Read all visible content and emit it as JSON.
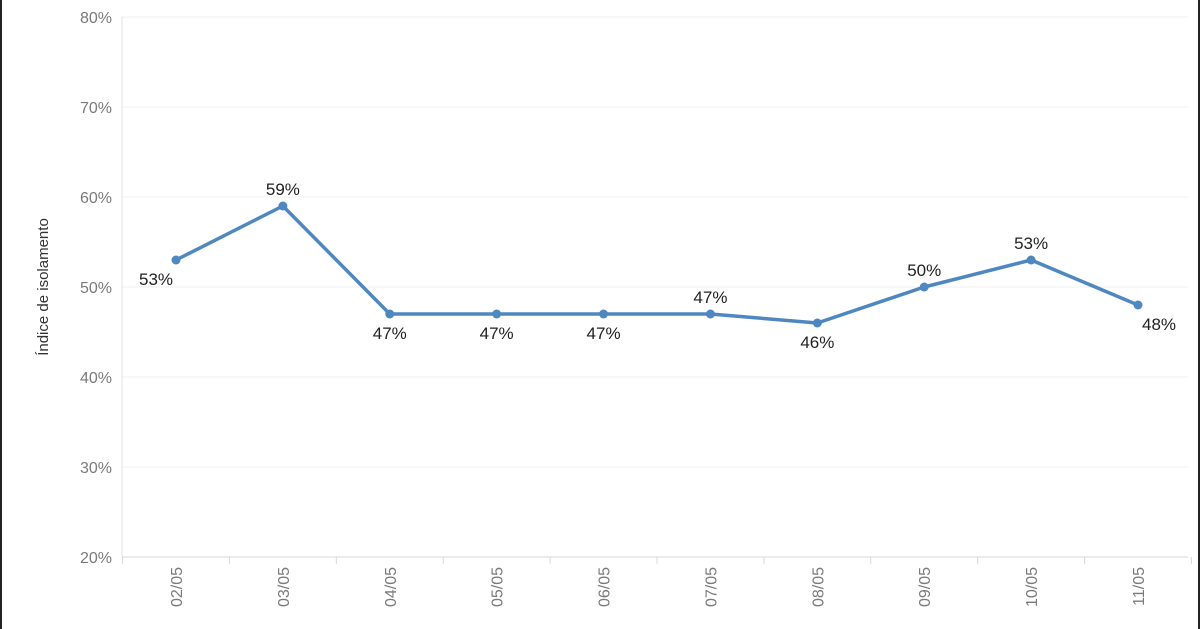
{
  "chart_data": {
    "type": "line",
    "categories": [
      "02/05",
      "03/05",
      "04/05",
      "05/05",
      "06/05",
      "07/05",
      "08/05",
      "09/05",
      "10/05",
      "11/05"
    ],
    "series": [
      {
        "values": [
          53,
          59,
          47,
          47,
          47,
          47,
          46,
          50,
          53,
          48
        ]
      }
    ],
    "value_labels": [
      "53%",
      "59%",
      "47%",
      "47%",
      "47%",
      "47%",
      "46%",
      "50%",
      "53%",
      "48%"
    ],
    "label_positions": [
      "below",
      "above",
      "below",
      "below",
      "below",
      "above",
      "below",
      "above",
      "above",
      "below"
    ],
    "ylabel": "Índice de isolamento",
    "ylim": [
      20,
      80
    ],
    "yticks": [
      20,
      30,
      40,
      50,
      60,
      70,
      80
    ],
    "ytick_labels": [
      "20%",
      "30%",
      "40%",
      "50%",
      "60%",
      "70%",
      "80%"
    ],
    "grid": true,
    "color": "#4f87c0"
  }
}
